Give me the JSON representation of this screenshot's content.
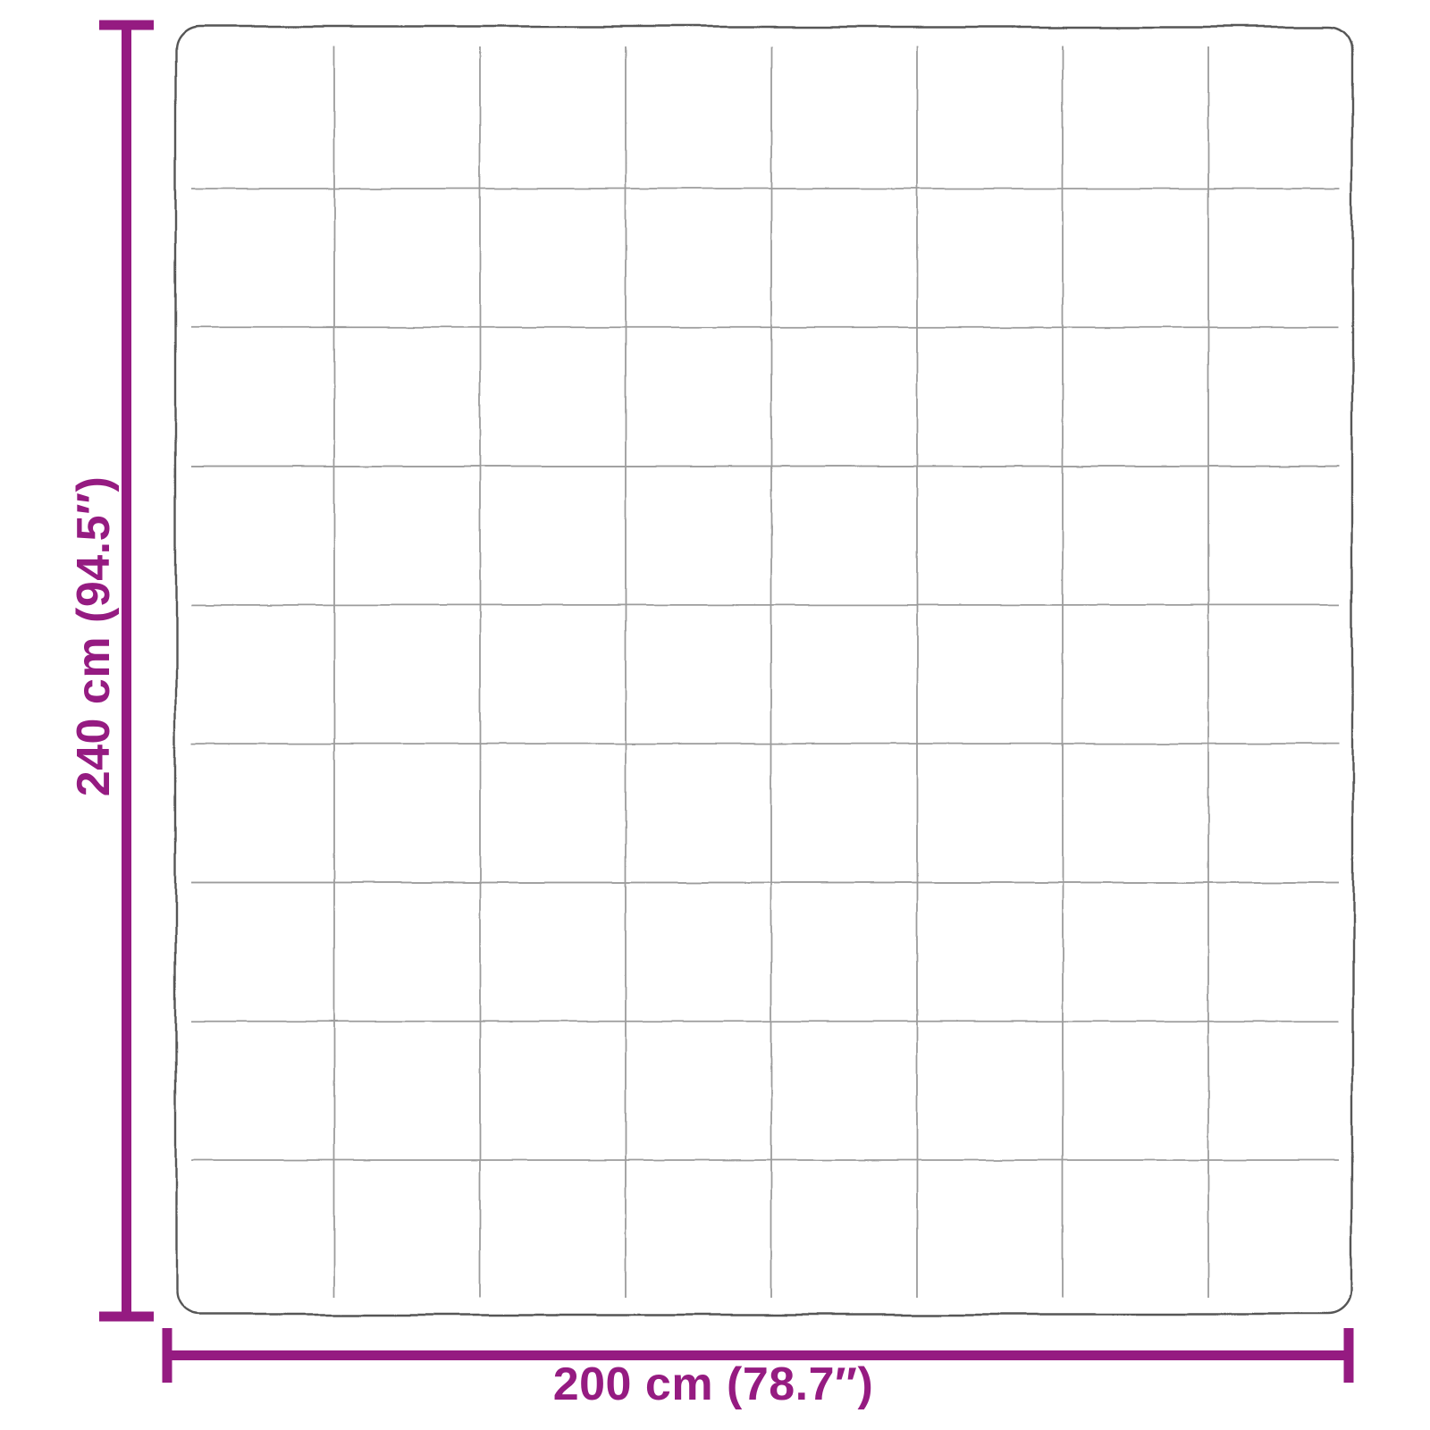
{
  "diagram": {
    "type": "product-dimensions",
    "height_dimension": {
      "label": "240 cm (94.5″)",
      "value_cm": "240",
      "value_inches": "94.5"
    },
    "width_dimension": {
      "label": "200 cm (78.7″)",
      "value_cm": "200",
      "value_inches": "78.7"
    },
    "quilt_grid": {
      "columns": 8,
      "rows": 9
    },
    "colors": {
      "dimension_line": "#951B81",
      "blanket_outline": "#565656",
      "grid_line": "#9C9C9C",
      "background": "#FFFFFF"
    }
  }
}
